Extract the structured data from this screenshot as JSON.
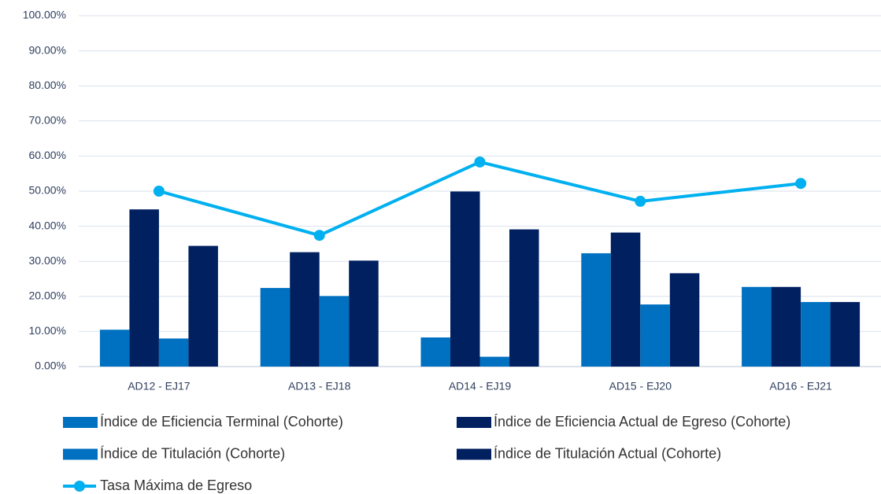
{
  "chart_data": {
    "type": "bar",
    "categories": [
      "AD12 - EJ17",
      "AD13 - EJ18",
      "AD14 - EJ19",
      "AD15 - EJ20",
      "AD16 - EJ21"
    ],
    "series": [
      {
        "name": "Índice de Eficiencia Terminal (Cohorte)",
        "color": "#0070c0",
        "values": [
          10.5,
          22.4,
          8.3,
          32.3,
          22.7
        ]
      },
      {
        "name": "Índice de Eficiencia Actual de Egreso (Cohorte)",
        "color": "#002060",
        "values": [
          44.8,
          32.6,
          49.9,
          38.2,
          22.7
        ]
      },
      {
        "name": "Índice de Titulación (Cohorte)",
        "color": "#0070c0",
        "values": [
          8.0,
          20.1,
          2.8,
          17.7,
          18.4
        ]
      },
      {
        "name": "Índice de Titulación Actual (Cohorte)",
        "color": "#002060",
        "values": [
          34.4,
          30.2,
          39.1,
          26.6,
          18.4
        ]
      },
      {
        "name": "Tasa Máxima de Egreso",
        "color": "#00b0f0",
        "type": "line",
        "values": [
          50.0,
          37.4,
          58.3,
          47.1,
          52.2
        ]
      }
    ],
    "ylim": [
      0,
      100
    ],
    "yticks": [
      {
        "value": 0,
        "label": "0.00%"
      },
      {
        "value": 10,
        "label": "10.00%"
      },
      {
        "value": 20,
        "label": "20.00%"
      },
      {
        "value": 30,
        "label": "30.00%"
      },
      {
        "value": 40,
        "label": "40.00%"
      },
      {
        "value": 50,
        "label": "50.00%"
      },
      {
        "value": 60,
        "label": "60.00%"
      },
      {
        "value": 70,
        "label": "70.00%"
      },
      {
        "value": 80,
        "label": "80.00%"
      },
      {
        "value": 90,
        "label": "90.00%"
      },
      {
        "value": 100,
        "label": "100.00%"
      }
    ],
    "grid": true
  }
}
